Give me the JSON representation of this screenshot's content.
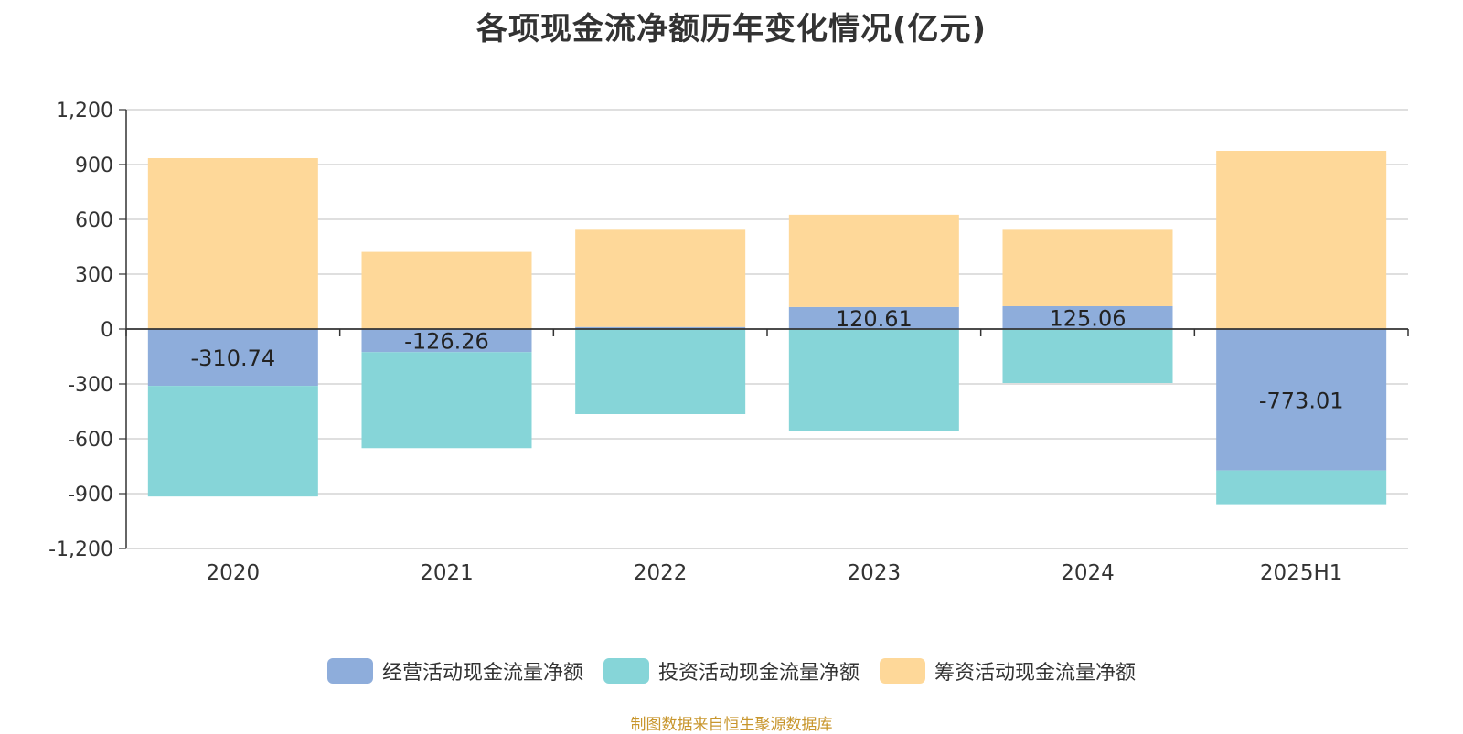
{
  "colors": {
    "operating": "#8eaddb",
    "investing": "#86d5d8",
    "financing": "#fed899",
    "source": "#c8962d"
  },
  "source_note": "制图数据来自恒生聚源数据库",
  "chart_data": {
    "type": "bar",
    "stacked": true,
    "title": "各项现金流净额历年变化情况(亿元)",
    "categories": [
      "2020",
      "2021",
      "2022",
      "2023",
      "2024",
      "2025H1"
    ],
    "ylim": [
      -1200,
      1200
    ],
    "yticks": [
      1200,
      900,
      600,
      300,
      0,
      -300,
      -600,
      -900,
      -1200
    ],
    "ytick_labels": [
      "1,200",
      "900",
      "600",
      "300",
      "0",
      "-300",
      "-600",
      "-900",
      "-1,200"
    ],
    "legend_position": "bottom-center",
    "grid": true,
    "series": [
      {
        "key": "operating",
        "name": "经营活动现金流量净额",
        "values": [
          -310.74,
          -126.26,
          11.3,
          120.61,
          125.06,
          -773.01
        ],
        "labels": [
          "-310.74",
          "-126.26",
          "",
          "120.61",
          "125.06",
          "-773.01"
        ]
      },
      {
        "key": "investing",
        "name": "投资活动现金流量净额",
        "values": [
          -605,
          -525,
          -465,
          -555,
          -295,
          -185
        ]
      },
      {
        "key": "financing",
        "name": "筹资活动现金流量净额",
        "values": [
          935,
          422,
          532,
          505,
          418,
          975
        ]
      }
    ]
  }
}
